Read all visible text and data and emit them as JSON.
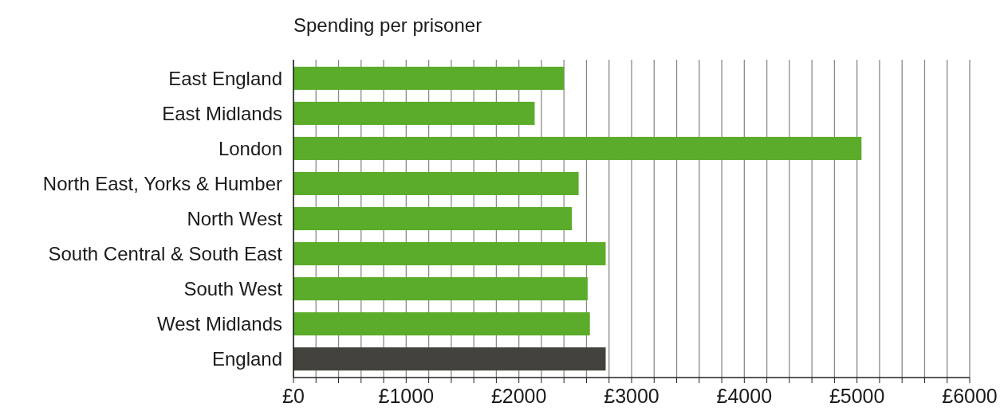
{
  "chart_data": {
    "type": "bar",
    "orientation": "horizontal",
    "title": "Spending per prisoner",
    "categories": [
      "East England",
      "East Midlands",
      "London",
      "North East, Yorks & Humber",
      "North West",
      "South Central & South East",
      "South West",
      "West Midlands",
      "England"
    ],
    "values": [
      2400,
      2140,
      5040,
      2530,
      2470,
      2770,
      2610,
      2630,
      2770
    ],
    "colors": [
      "#5aac2a",
      "#5aac2a",
      "#5aac2a",
      "#5aac2a",
      "#5aac2a",
      "#5aac2a",
      "#5aac2a",
      "#5aac2a",
      "#43423c"
    ],
    "xlim": [
      0,
      6000
    ],
    "xticks": [
      {
        "value": 0,
        "label": "£0"
      },
      {
        "value": 200,
        "label": null
      },
      {
        "value": 400,
        "label": null
      },
      {
        "value": 600,
        "label": null
      },
      {
        "value": 800,
        "label": null
      },
      {
        "value": 1000,
        "label": "£1000"
      },
      {
        "value": 1200,
        "label": null
      },
      {
        "value": 1400,
        "label": null
      },
      {
        "value": 1600,
        "label": null
      },
      {
        "value": 1800,
        "label": null
      },
      {
        "value": 2000,
        "label": "£2000"
      },
      {
        "value": 2200,
        "label": null
      },
      {
        "value": 2400,
        "label": null
      },
      {
        "value": 2600,
        "label": null
      },
      {
        "value": 2800,
        "label": null
      },
      {
        "value": 3000,
        "label": "£3000"
      },
      {
        "value": 3200,
        "label": null
      },
      {
        "value": 3400,
        "label": null
      },
      {
        "value": 3600,
        "label": null
      },
      {
        "value": 3800,
        "label": null
      },
      {
        "value": 4000,
        "label": "£4000"
      },
      {
        "value": 4200,
        "label": null
      },
      {
        "value": 4400,
        "label": null
      },
      {
        "value": 4600,
        "label": null
      },
      {
        "value": 4800,
        "label": null
      },
      {
        "value": 5000,
        "label": "£5000"
      },
      {
        "value": 5200,
        "label": null
      },
      {
        "value": 5400,
        "label": null
      },
      {
        "value": 5600,
        "label": null
      },
      {
        "value": 5800,
        "label": null
      },
      {
        "value": 6000,
        "label": "£6000"
      }
    ],
    "grid": "x"
  }
}
